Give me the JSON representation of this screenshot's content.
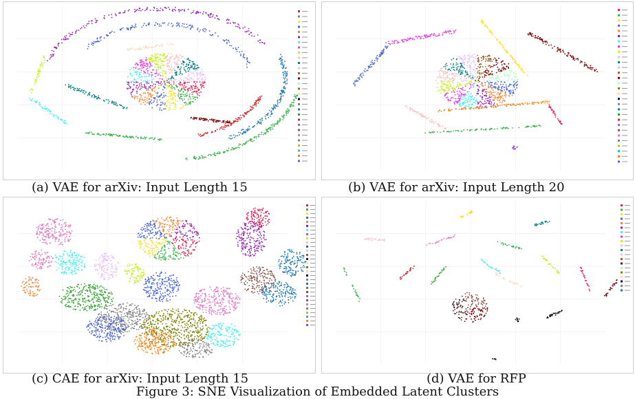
{
  "figure": {
    "caption": "Figure 3: SNE Visualization of Embedded Latent Clusters",
    "panels": [
      {
        "id": "a",
        "caption": "(a) VAE for arXiv: Input Length 15"
      },
      {
        "id": "b",
        "caption": "(b) VAE for arXiv: Input Length 20"
      },
      {
        "id": "c",
        "caption": "(c) CAE for arXiv: Input Length 15"
      },
      {
        "id": "d",
        "caption": "(d) VAE for RFP"
      }
    ]
  },
  "palette": [
    "#e6194b",
    "#3cb44b",
    "#ffe119",
    "#4363d8",
    "#f58231",
    "#911eb4",
    "#46f0f0",
    "#f032e6",
    "#bcf60c",
    "#fabebe",
    "#008080",
    "#e6beff",
    "#9a6324",
    "#800000",
    "#aaffc3",
    "#808000",
    "#ffd8b1",
    "#000075",
    "#808080",
    "#1f77b4",
    "#2ca02c",
    "#d62728",
    "#9467bd",
    "#8c564b",
    "#e377c2",
    "#7f7f7f",
    "#bcbd22",
    "#17becf",
    "#ff7f0e",
    "#6a5acd"
  ]
}
